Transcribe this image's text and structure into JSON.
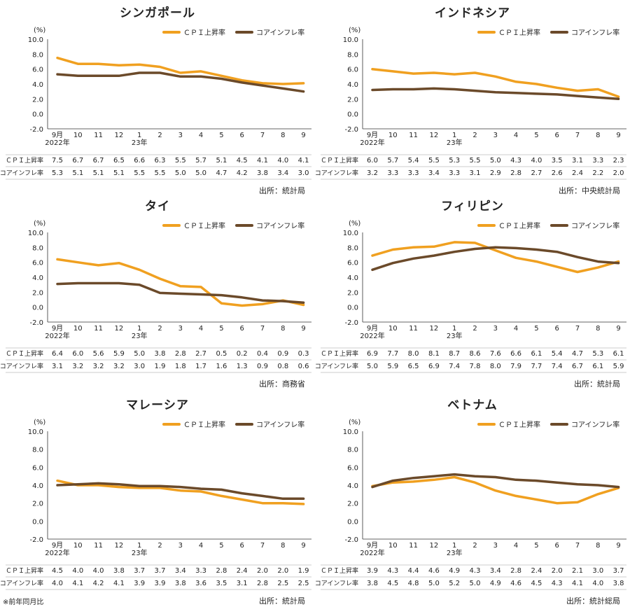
{
  "colors": {
    "cpi": "#F0A020",
    "core": "#6B4A2A"
  },
  "legend": {
    "cpi": "ＣＰＩ上昇率",
    "core": "コアインフレ率"
  },
  "unit": "(%)",
  "row_labels": {
    "cpi": "ＣＰＩ上昇率",
    "core": "コアインフレ率"
  },
  "footnote": "※前年同月比",
  "chart_data": [
    {
      "type": "line",
      "title": "シンガポール",
      "ylim": [
        -2.0,
        10.0
      ],
      "yticks": [
        "10.0",
        "8.0",
        "6.0",
        "4.0",
        "2.0",
        "0.0",
        "-2.0"
      ],
      "categories": [
        "9月",
        "10",
        "11",
        "12",
        "1",
        "2",
        "3",
        "4",
        "5",
        "6",
        "7",
        "8",
        "9"
      ],
      "year_labels": [
        "2022年",
        "23年"
      ],
      "series": [
        {
          "name": "ＣＰＩ上昇率",
          "values": [
            7.5,
            6.7,
            6.7,
            6.5,
            6.6,
            6.3,
            5.5,
            5.7,
            5.1,
            4.5,
            4.1,
            4.0,
            4.1
          ]
        },
        {
          "name": "コアインフレ率",
          "values": [
            5.3,
            5.1,
            5.1,
            5.1,
            5.5,
            5.5,
            5.0,
            5.0,
            4.7,
            4.2,
            3.8,
            3.4,
            3.0
          ]
        }
      ],
      "source": "出所：統計局"
    },
    {
      "type": "line",
      "title": "インドネシア",
      "ylim": [
        -2.0,
        10.0
      ],
      "yticks": [
        "10.0",
        "8.0",
        "6.0",
        "4.0",
        "2.0",
        "0.0",
        "-2.0"
      ],
      "categories": [
        "9月",
        "10",
        "11",
        "12",
        "1",
        "2",
        "3",
        "4",
        "5",
        "6",
        "7",
        "8",
        "9"
      ],
      "year_labels": [
        "2022年",
        "23年"
      ],
      "series": [
        {
          "name": "ＣＰＩ上昇率",
          "values": [
            6.0,
            5.7,
            5.4,
            5.5,
            5.3,
            5.5,
            5.0,
            4.3,
            4.0,
            3.5,
            3.1,
            3.3,
            2.3
          ]
        },
        {
          "name": "コアインフレ率",
          "values": [
            3.2,
            3.3,
            3.3,
            3.4,
            3.3,
            3.1,
            2.9,
            2.8,
            2.7,
            2.6,
            2.4,
            2.2,
            2.0
          ]
        }
      ],
      "source": "出所：中央統計局"
    },
    {
      "type": "line",
      "title": "タイ",
      "ylim": [
        -2.0,
        10.0
      ],
      "yticks": [
        "10.0",
        "8.0",
        "6.0",
        "4.0",
        "2.0",
        "0.0",
        "-2.0"
      ],
      "categories": [
        "9月",
        "10",
        "11",
        "12",
        "1",
        "2",
        "3",
        "4",
        "5",
        "6",
        "7",
        "8",
        "9"
      ],
      "year_labels": [
        "2022年",
        "23年"
      ],
      "series": [
        {
          "name": "ＣＰＩ上昇率",
          "values": [
            6.4,
            6.0,
            5.6,
            5.9,
            5.0,
            3.8,
            2.8,
            2.7,
            0.5,
            0.2,
            0.4,
            0.9,
            0.3
          ]
        },
        {
          "name": "コアインフレ率",
          "values": [
            3.1,
            3.2,
            3.2,
            3.2,
            3.0,
            1.9,
            1.8,
            1.7,
            1.6,
            1.3,
            0.9,
            0.8,
            0.6
          ]
        }
      ],
      "source": "出所：商務省"
    },
    {
      "type": "line",
      "title": "フィリピン",
      "ylim": [
        -2.0,
        10.0
      ],
      "yticks": [
        "10.0",
        "8.0",
        "6.0",
        "4.0",
        "2.0",
        "0.0",
        "-2.0"
      ],
      "categories": [
        "9月",
        "10",
        "11",
        "12",
        "1",
        "2",
        "3",
        "4",
        "5",
        "6",
        "7",
        "8",
        "9"
      ],
      "year_labels": [
        "2022年",
        "23年"
      ],
      "series": [
        {
          "name": "ＣＰＩ上昇率",
          "values": [
            6.9,
            7.7,
            8.0,
            8.1,
            8.7,
            8.6,
            7.6,
            6.6,
            6.1,
            5.4,
            4.7,
            5.3,
            6.1
          ]
        },
        {
          "name": "コアインフレ率",
          "values": [
            5.0,
            5.9,
            6.5,
            6.9,
            7.4,
            7.8,
            8.0,
            7.9,
            7.7,
            7.4,
            6.7,
            6.1,
            5.9
          ]
        }
      ],
      "source": "出所：統計局"
    },
    {
      "type": "line",
      "title": "マレーシア",
      "ylim": [
        -2.0,
        10.0
      ],
      "yticks": [
        "10.0",
        "8.0",
        "6.0",
        "4.0",
        "2.0",
        "0.0",
        "-2.0"
      ],
      "categories": [
        "9月",
        "10",
        "11",
        "12",
        "1",
        "2",
        "3",
        "4",
        "5",
        "6",
        "7",
        "8",
        "9"
      ],
      "year_labels": [
        "2022年",
        "23年"
      ],
      "series": [
        {
          "name": "ＣＰＩ上昇率",
          "values": [
            4.5,
            4.0,
            4.0,
            3.8,
            3.7,
            3.7,
            3.4,
            3.3,
            2.8,
            2.4,
            2.0,
            2.0,
            1.9
          ]
        },
        {
          "name": "コアインフレ率",
          "values": [
            4.0,
            4.1,
            4.2,
            4.1,
            3.9,
            3.9,
            3.8,
            3.6,
            3.5,
            3.1,
            2.8,
            2.5,
            2.5
          ]
        }
      ],
      "source": "出所：統計局"
    },
    {
      "type": "line",
      "title": "ベトナム",
      "ylim": [
        -2.0,
        10.0
      ],
      "yticks": [
        "10.0",
        "8.0",
        "6.0",
        "4.0",
        "2.0",
        "0.0",
        "-2.0"
      ],
      "categories": [
        "9月",
        "10",
        "11",
        "12",
        "1",
        "2",
        "3",
        "4",
        "5",
        "6",
        "7",
        "8",
        "9"
      ],
      "year_labels": [
        "2022年",
        "23年"
      ],
      "series": [
        {
          "name": "ＣＰＩ上昇率",
          "values": [
            3.9,
            4.3,
            4.4,
            4.6,
            4.9,
            4.3,
            3.4,
            2.8,
            2.4,
            2.0,
            2.1,
            3.0,
            3.7
          ]
        },
        {
          "name": "コアインフレ率",
          "values": [
            3.8,
            4.5,
            4.8,
            5.0,
            5.2,
            5.0,
            4.9,
            4.6,
            4.5,
            4.3,
            4.1,
            4.0,
            3.8
          ]
        }
      ],
      "source": "出所：統計総局"
    }
  ]
}
